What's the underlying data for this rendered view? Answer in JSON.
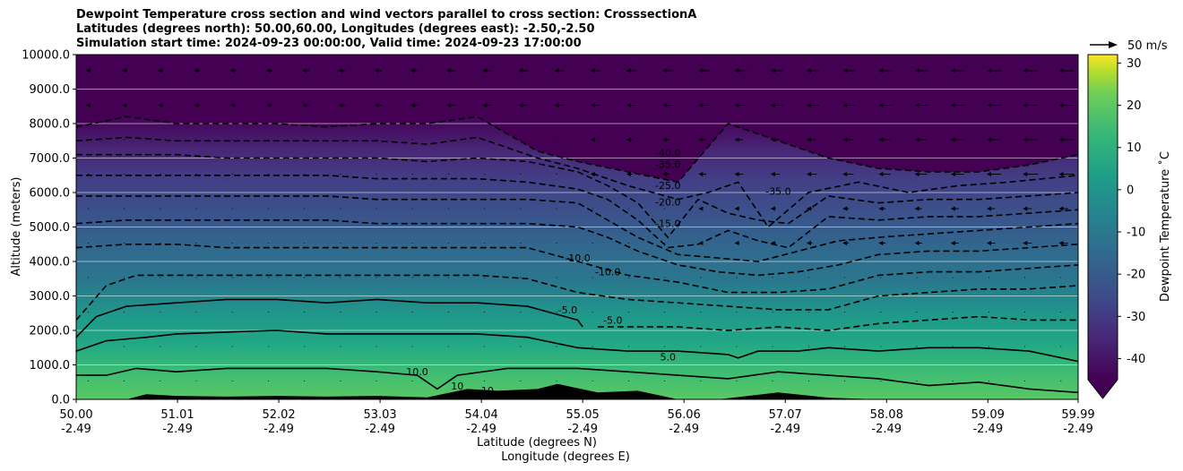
{
  "chart_data": {
    "type": "contour",
    "title_lines": [
      "Dewpoint Temperature cross section and wind vectors parallel to cross section: CrosssectionA",
      "Latitudes (degrees north): 50.00,60.00, Longitudes (degrees east): -2.50,-2.50",
      "Simulation start time: 2024-09-23 00:00:00, Valid time: 2024-09-23 17:00:00"
    ],
    "xlabel_lat": "Latitude (degrees N)",
    "xlabel_lon": "Longitude (degrees E)",
    "ylabel": "Altitude (meters)",
    "xlim": [
      50.0,
      59.99
    ],
    "ylim": [
      0,
      10000
    ],
    "x_ticks_lat": [
      "50.00",
      "51.01",
      "52.02",
      "53.03",
      "54.04",
      "55.05",
      "56.06",
      "57.07",
      "58.08",
      "59.09",
      "59.99"
    ],
    "x_ticks_lon": [
      "-2.49",
      "-2.49",
      "-2.49",
      "-2.49",
      "-2.49",
      "-2.49",
      "-2.49",
      "-2.49",
      "-2.49",
      "-2.49",
      "-2.49"
    ],
    "y_ticks": [
      "0.0",
      "1000.0",
      "2000.0",
      "3000.0",
      "4000.0",
      "5000.0",
      "6000.0",
      "7000.0",
      "8000.0",
      "9000.0",
      "10000.0"
    ],
    "colorbar": {
      "label": "Dewpoint Temperature ˚C",
      "ticks": [
        "-40",
        "-30",
        "-20",
        "-10",
        "0",
        "10",
        "20",
        "30"
      ],
      "range": [
        -45,
        32
      ],
      "extend": "min"
    },
    "quiver_key": "50 m/s",
    "contour_labels": [
      "-40.0",
      "-35.0",
      "-35.0",
      "-25.0",
      "-20.0",
      "-15.0",
      "-10.0",
      "-10.0",
      "-5.0",
      "-5.0",
      "5.0",
      "10.0",
      "10",
      "10"
    ],
    "contour_levels": [
      {
        "level": -40,
        "style": "dashed",
        "x": [
          50.0,
          50.5,
          51.0,
          51.5,
          52.0,
          52.5,
          53.0,
          53.5,
          54.0,
          54.6,
          55.0,
          55.5,
          56.0,
          56.5,
          57.0,
          57.5,
          58.0,
          58.5,
          59.0,
          59.5,
          59.99
        ],
        "y": [
          7900,
          8200,
          8000,
          8000,
          8000,
          7900,
          8000,
          8000,
          8200,
          7200,
          6900,
          6600,
          6300,
          8000,
          7500,
          7000,
          6700,
          6600,
          6600,
          6800,
          7100
        ]
      },
      {
        "level": -35,
        "style": "dashed",
        "x": [
          50.0,
          50.5,
          51.0,
          51.5,
          52.0,
          52.5,
          53.0,
          53.5,
          54.0,
          54.6,
          55.0,
          55.5,
          56.0,
          56.3,
          56.6,
          56.9,
          57.3,
          57.8,
          58.3,
          58.8,
          59.3,
          59.99
        ],
        "y": [
          7500,
          7600,
          7500,
          7500,
          7500,
          7500,
          7500,
          7400,
          7600,
          7000,
          6700,
          6200,
          5800,
          6000,
          6300,
          5000,
          6000,
          6300,
          6000,
          6200,
          6300,
          6500
        ]
      },
      {
        "level": -30,
        "style": "dashed",
        "x": [
          50.0,
          50.5,
          51.0,
          51.5,
          52.0,
          52.5,
          53.0,
          53.5,
          54.0,
          54.5,
          55.0,
          55.3,
          55.6,
          55.9,
          56.2,
          56.5,
          56.8,
          57.1,
          57.5,
          58.0,
          58.5,
          59.0,
          59.5,
          59.99
        ],
        "y": [
          7100,
          7100,
          7100,
          7000,
          7000,
          7000,
          7000,
          6900,
          7000,
          6900,
          6600,
          6200,
          5700,
          4700,
          5800,
          5400,
          5200,
          5100,
          5900,
          5700,
          5800,
          5800,
          5900,
          6000
        ]
      },
      {
        "level": -25,
        "style": "dashed",
        "x": [
          50.0,
          50.5,
          51.0,
          51.5,
          52.0,
          52.5,
          53.0,
          53.5,
          54.0,
          54.5,
          55.0,
          55.3,
          55.6,
          55.9,
          56.2,
          56.5,
          56.8,
          57.1,
          57.5,
          58.0,
          58.5,
          59.0,
          59.5,
          59.99
        ],
        "y": [
          6500,
          6500,
          6500,
          6500,
          6500,
          6500,
          6400,
          6400,
          6400,
          6300,
          6100,
          5800,
          5200,
          4400,
          4500,
          4900,
          4600,
          4400,
          5300,
          5200,
          5300,
          5300,
          5400,
          5500
        ]
      },
      {
        "level": -20,
        "style": "dashed",
        "x": [
          50.0,
          50.5,
          51.0,
          51.5,
          52.0,
          52.5,
          53.0,
          53.5,
          54.0,
          54.5,
          55.0,
          55.3,
          55.6,
          56.0,
          56.4,
          56.8,
          57.2,
          57.6,
          58.0,
          58.5,
          59.0,
          59.5,
          59.99
        ],
        "y": [
          5900,
          5900,
          5900,
          5900,
          5900,
          5900,
          5800,
          5800,
          5800,
          5800,
          5700,
          5200,
          4700,
          4200,
          4100,
          4000,
          4300,
          4600,
          4700,
          4800,
          4900,
          5000,
          5100
        ]
      },
      {
        "level": -15,
        "style": "dashed",
        "x": [
          50.0,
          50.5,
          51.0,
          51.5,
          52.0,
          52.5,
          53.0,
          53.5,
          54.0,
          54.5,
          55.0,
          55.3,
          55.6,
          56.0,
          56.4,
          56.8,
          57.2,
          57.6,
          58.0,
          58.5,
          59.0,
          59.5,
          59.99
        ],
        "y": [
          5100,
          5200,
          5200,
          5200,
          5200,
          5200,
          5100,
          5100,
          5100,
          5100,
          5000,
          4700,
          4300,
          3900,
          3700,
          3600,
          3700,
          3900,
          4200,
          4300,
          4300,
          4400,
          4500
        ]
      },
      {
        "level": -10,
        "style": "dashed",
        "x": [
          50.0,
          50.5,
          51.0,
          51.5,
          52.0,
          52.5,
          53.0,
          53.5,
          54.0,
          54.5,
          55.0,
          55.5,
          56.0,
          56.5,
          57.0,
          57.5,
          58.0,
          58.5,
          59.0,
          59.5,
          59.99
        ],
        "y": [
          4400,
          4500,
          4500,
          4400,
          4400,
          4400,
          4400,
          4400,
          4400,
          4400,
          4000,
          3600,
          3400,
          3100,
          3100,
          3200,
          3600,
          3700,
          3700,
          3800,
          3900
        ]
      },
      {
        "level": -5,
        "style": "dashed",
        "x": [
          50.0,
          50.15,
          50.3,
          50.6,
          51.0,
          51.5,
          52.0,
          52.5,
          53.0,
          53.5,
          54.0,
          54.5,
          55.0,
          55.5,
          56.0,
          56.5,
          57.0,
          57.5,
          58.0,
          58.5,
          59.0,
          59.5,
          59.99
        ],
        "y": [
          2300,
          2800,
          3300,
          3600,
          3600,
          3600,
          3600,
          3600,
          3600,
          3600,
          3600,
          3500,
          3100,
          2900,
          2800,
          2700,
          2600,
          2600,
          3000,
          3100,
          3200,
          3200,
          3300
        ]
      },
      {
        "level": 0,
        "style": "dashed",
        "x": [
          55.2,
          55.6,
          56.0,
          56.5,
          57.0,
          57.5,
          58.0,
          58.5,
          59.0,
          59.5,
          59.99
        ],
        "y": [
          2100,
          2100,
          2100,
          2000,
          2100,
          2000,
          2200,
          2300,
          2400,
          2300,
          2300
        ]
      },
      {
        "level": 0,
        "style": "solid",
        "x": [
          50.0,
          50.2,
          50.5,
          51.0,
          51.5,
          52.0,
          52.5,
          53.0,
          53.5,
          54.0,
          54.5,
          55.0,
          55.05
        ],
        "y": [
          1800,
          2400,
          2700,
          2800,
          2900,
          2900,
          2800,
          2900,
          2800,
          2800,
          2700,
          2300,
          2100
        ]
      },
      {
        "level": 5,
        "style": "solid",
        "x": [
          50.0,
          50.3,
          50.7,
          51.0,
          51.5,
          52.0,
          52.5,
          53.0,
          53.5,
          54.0,
          54.5,
          55.0,
          55.5,
          56.0,
          56.5,
          56.6,
          56.8,
          57.2,
          57.5,
          58.0,
          58.5,
          59.0,
          59.5,
          59.99
        ],
        "y": [
          1400,
          1700,
          1800,
          1900,
          1950,
          2000,
          1900,
          1900,
          1900,
          1900,
          1800,
          1500,
          1400,
          1400,
          1300,
          1200,
          1400,
          1400,
          1500,
          1400,
          1500,
          1500,
          1400,
          1100
        ]
      },
      {
        "level": 10,
        "style": "solid",
        "x": [
          50.0,
          50.3,
          50.6,
          51.0,
          51.5,
          52.0,
          52.5,
          53.0,
          53.4,
          53.6,
          53.8,
          54.3,
          55.0,
          55.5,
          56.0,
          56.5,
          57.0,
          57.5,
          58.0,
          58.5,
          59.0,
          59.5,
          59.99
        ],
        "y": [
          700,
          700,
          900,
          800,
          900,
          900,
          900,
          800,
          700,
          300,
          700,
          900,
          900,
          800,
          700,
          600,
          800,
          700,
          600,
          400,
          500,
          300,
          200
        ]
      }
    ],
    "terrain": {
      "x": [
        50.0,
        50.5,
        50.7,
        51.0,
        51.5,
        52.0,
        52.5,
        53.0,
        53.5,
        53.9,
        54.2,
        54.6,
        54.8,
        55.2,
        55.6,
        56.0,
        56.4,
        57.0,
        57.5,
        58.0
      ],
      "y": [
        0,
        0,
        150,
        100,
        80,
        100,
        80,
        100,
        60,
        300,
        250,
        300,
        450,
        200,
        250,
        0,
        0,
        200,
        50,
        0
      ]
    }
  }
}
